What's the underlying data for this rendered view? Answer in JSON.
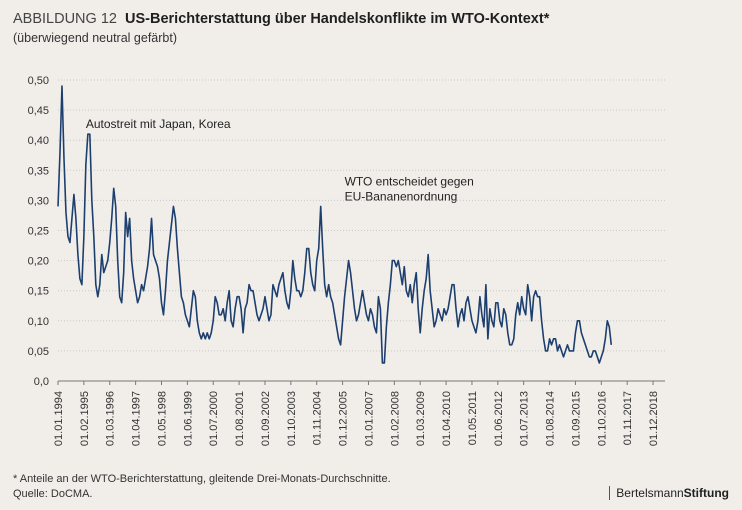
{
  "header": {
    "figure_label": "ABBILDUNG 12",
    "title": "US-Berichterstattung über Handelskonflikte im WTO-Kontext*",
    "subtitle": "(überwiegend neutral gefärbt)"
  },
  "footer": {
    "note": "* Anteile an der WTO-Berichterstattung, gleitende Drei-Monats-Durchschnitte.",
    "source": "Quelle: DoCMA."
  },
  "brand": {
    "part1": "Bertelsmann",
    "part2": "Stiftung"
  },
  "colors": {
    "line": "#1d3f6e",
    "background": "#f1eeea",
    "grid": "#c8c8c8"
  },
  "chart_data": {
    "type": "line",
    "title": "US-Berichterstattung über Handelskonflikte im WTO-Kontext*",
    "ylim": [
      0,
      0.5
    ],
    "yticks": [
      "0,0",
      "0,05",
      "0,10",
      "0,15",
      "0,20",
      "0,25",
      "0,30",
      "0,35",
      "0,40",
      "0,45",
      "0,50"
    ],
    "xlim": [
      "1994-01",
      "2019-06"
    ],
    "xticks": [
      "01.01.1994",
      "01.02.1995",
      "01.03.1996",
      "01.04.1997",
      "01.05.1998",
      "01.06.1999",
      "01.07.2000",
      "01.08.2001",
      "01.09.2002",
      "01.10.2003",
      "01.11.2004",
      "01.12.2005",
      "01.01.2007",
      "01.02.2008",
      "01.03.2009",
      "01.04.2010",
      "01.05.2011",
      "01.06.2012",
      "01.07.2013",
      "01.08.2014",
      "01.09.2015",
      "01.10.2016",
      "01.11.2017",
      "01.12.2018"
    ],
    "grid": "horizontal",
    "annotations": [
      {
        "text": "Autostreit mit Japan, Korea",
        "x": "1995-02",
        "y": 0.41
      },
      {
        "text": "WTO entscheidet gegen\nEU-Bananenordnung",
        "x": "2005-12",
        "y": 0.29
      }
    ],
    "series": [
      {
        "x_start": "1994-01",
        "frequency": "monthly",
        "values": [
          0.29,
          0.38,
          0.49,
          0.37,
          0.28,
          0.24,
          0.23,
          0.27,
          0.31,
          0.27,
          0.21,
          0.17,
          0.16,
          0.24,
          0.36,
          0.41,
          0.41,
          0.3,
          0.24,
          0.16,
          0.14,
          0.16,
          0.21,
          0.18,
          0.19,
          0.2,
          0.23,
          0.27,
          0.32,
          0.29,
          0.2,
          0.14,
          0.13,
          0.18,
          0.28,
          0.24,
          0.27,
          0.2,
          0.17,
          0.15,
          0.13,
          0.14,
          0.16,
          0.15,
          0.17,
          0.19,
          0.22,
          0.27,
          0.21,
          0.2,
          0.19,
          0.17,
          0.13,
          0.11,
          0.15,
          0.2,
          0.23,
          0.26,
          0.29,
          0.27,
          0.22,
          0.18,
          0.14,
          0.13,
          0.11,
          0.1,
          0.09,
          0.12,
          0.15,
          0.14,
          0.1,
          0.08,
          0.07,
          0.08,
          0.07,
          0.08,
          0.07,
          0.08,
          0.1,
          0.14,
          0.13,
          0.11,
          0.11,
          0.12,
          0.1,
          0.13,
          0.15,
          0.1,
          0.09,
          0.12,
          0.14,
          0.14,
          0.12,
          0.08,
          0.12,
          0.13,
          0.16,
          0.15,
          0.15,
          0.13,
          0.11,
          0.1,
          0.11,
          0.12,
          0.14,
          0.12,
          0.1,
          0.11,
          0.16,
          0.15,
          0.14,
          0.16,
          0.17,
          0.18,
          0.15,
          0.13,
          0.12,
          0.15,
          0.2,
          0.17,
          0.15,
          0.15,
          0.14,
          0.15,
          0.18,
          0.22,
          0.22,
          0.18,
          0.16,
          0.15,
          0.2,
          0.22,
          0.29,
          0.22,
          0.16,
          0.14,
          0.16,
          0.14,
          0.13,
          0.11,
          0.09,
          0.07,
          0.06,
          0.1,
          0.14,
          0.17,
          0.2,
          0.18,
          0.15,
          0.12,
          0.1,
          0.11,
          0.13,
          0.15,
          0.13,
          0.11,
          0.1,
          0.12,
          0.11,
          0.09,
          0.08,
          0.14,
          0.12,
          0.03,
          0.03,
          0.09,
          0.13,
          0.16,
          0.2,
          0.2,
          0.19,
          0.2,
          0.18,
          0.16,
          0.19,
          0.15,
          0.14,
          0.16,
          0.13,
          0.16,
          0.18,
          0.12,
          0.08,
          0.12,
          0.15,
          0.17,
          0.21,
          0.15,
          0.12,
          0.09,
          0.1,
          0.12,
          0.11,
          0.1,
          0.12,
          0.11,
          0.12,
          0.14,
          0.16,
          0.16,
          0.12,
          0.09,
          0.11,
          0.12,
          0.1,
          0.13,
          0.14,
          0.12,
          0.1,
          0.09,
          0.08,
          0.1,
          0.14,
          0.11,
          0.09,
          0.16,
          0.07,
          0.12,
          0.1,
          0.09,
          0.13,
          0.13,
          0.1,
          0.09,
          0.12,
          0.11,
          0.08,
          0.06,
          0.06,
          0.07,
          0.11,
          0.13,
          0.11,
          0.14,
          0.12,
          0.11,
          0.16,
          0.14,
          0.1,
          0.14,
          0.15,
          0.14,
          0.14,
          0.1,
          0.07,
          0.05,
          0.05,
          0.07,
          0.06,
          0.07,
          0.07,
          0.05,
          0.06,
          0.05,
          0.04,
          0.05,
          0.06,
          0.05,
          0.05,
          0.05,
          0.08,
          0.1,
          0.1,
          0.08,
          0.07,
          0.06,
          0.05,
          0.04,
          0.04,
          0.05,
          0.05,
          0.04,
          0.03,
          0.04,
          0.05,
          0.07,
          0.1,
          0.09,
          0.06
        ]
      }
    ]
  }
}
